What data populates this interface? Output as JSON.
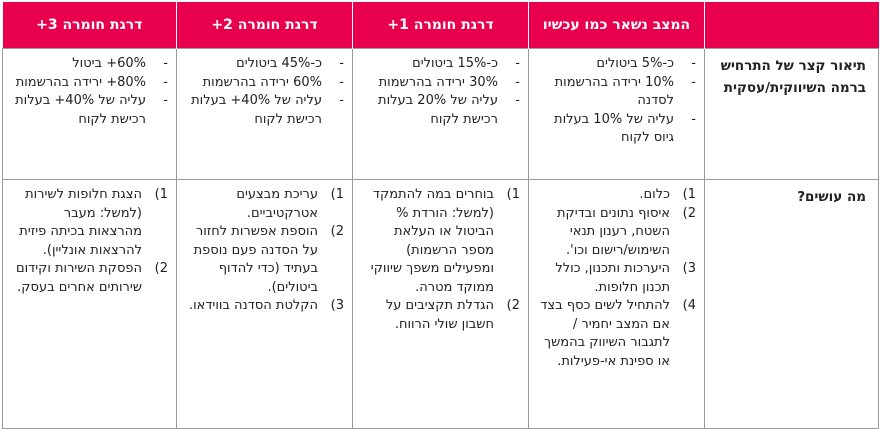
{
  "header": {
    "blank": "",
    "col1": "המצב נשאר כמו עכשיו",
    "col2": "דרגת חומרה 1+",
    "col3": "דרגת חומרה 2+",
    "col4": "דרגת חומרה 3+"
  },
  "row1": {
    "label": "תיאור קצר של התרחיש ברמה השיווקית/עסקית",
    "col1": [
      "כ-5% ביטולים",
      "10% ירידה בהרשמות לסדנה",
      "עליה של 10% בעלות גיוס לקוח"
    ],
    "col2": [
      "כ-15% ביטולים",
      "30% ירידה בהרשמות",
      "עליה של 20% בעלות רכישת לקוח"
    ],
    "col3": [
      "כ-45% ביטולים",
      "60% ירידה בהרשמות",
      "עליה של 40%+ בעלות רכישת לקוח"
    ],
    "col4": [
      "60%+ ביטול",
      "80%+ ירידה בהרשמות",
      "עליה של 40%+ בעלות רכישת לקוח"
    ]
  },
  "row2": {
    "label": "מה עושים?",
    "col1": [
      "כלום.",
      "איסוף נתונים ובדיקת השטח, רענון תנאי השימוש/רישום וכו'.",
      "היערכות ותכנון, כולל תכנון חלופות.",
      "להתחיל לשים כסף בצד אם המצב יחמיר / לתגבור השיווק בהמשך או ספינת אי-פעילות."
    ],
    "col2": [
      "בוחרים במה להתמקד (למשל: הורדת % הביטול או העלאת מספר הרשמות) ומפעילים משפך שיווקי ממוקד מטרה.",
      "הגדלת תקציבים על חשבון שולי הרווח."
    ],
    "col3": [
      "עריכת מבצעים אטרקטיביים.",
      "הוספת אפשרות לחזור על הסדנה פעם נוספת בעתיד (כדי להדוף ביטולים).",
      "הקלטת הסדנה בווידאו."
    ],
    "col4": [
      "הצגת חלופות לשירות (למשל: מעבר מהרצאות בכיתה פיזית להרצאות אונליין).",
      "הפסקת השירות וקידום שירותים אחרים בעסק."
    ]
  }
}
